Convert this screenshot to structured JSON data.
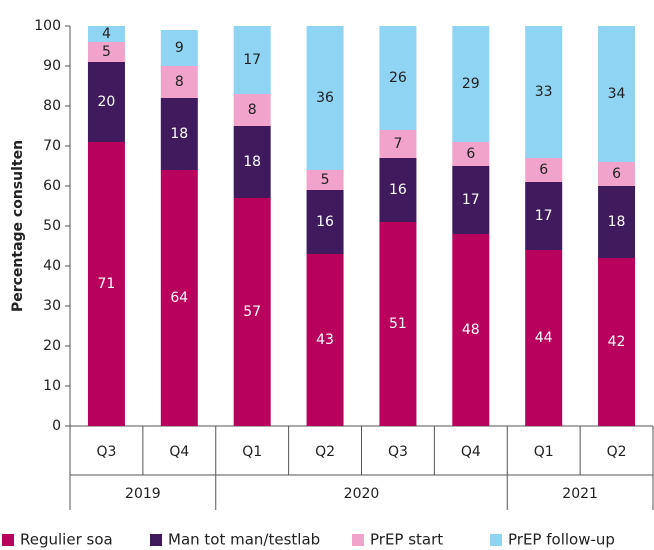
{
  "chart_data": {
    "type": "stacked_bar",
    "y_label": "Percentage consulten",
    "groups": [
      {
        "label": "2019",
        "categories": [
          "Q3",
          "Q4"
        ]
      },
      {
        "label": "2020",
        "categories": [
          "Q1",
          "Q2",
          "Q3",
          "Q4"
        ]
      },
      {
        "label": "2021",
        "categories": [
          "Q1",
          "Q2"
        ]
      }
    ],
    "series": [
      {
        "name": "Regulier soa",
        "color": "#b8005d",
        "values": [
          71,
          64,
          57,
          43,
          51,
          48,
          44,
          42
        ]
      },
      {
        "name": "Man tot man/testlab",
        "color": "#3f1b5e",
        "values": [
          20,
          18,
          18,
          16,
          16,
          17,
          17,
          18
        ]
      },
      {
        "name": "PrEP start",
        "color": "#f2a3cb",
        "values": [
          5,
          8,
          8,
          5,
          7,
          6,
          6,
          6
        ]
      },
      {
        "name": "PrEP follow-up",
        "color": "#8fd4f2",
        "values": [
          4,
          9,
          17,
          36,
          26,
          29,
          33,
          34
        ]
      }
    ],
    "ylim": [
      0,
      100
    ],
    "yticks": [
      0,
      10,
      20,
      30,
      40,
      50,
      60,
      70,
      80,
      90,
      100
    ],
    "legend": "bottom"
  }
}
